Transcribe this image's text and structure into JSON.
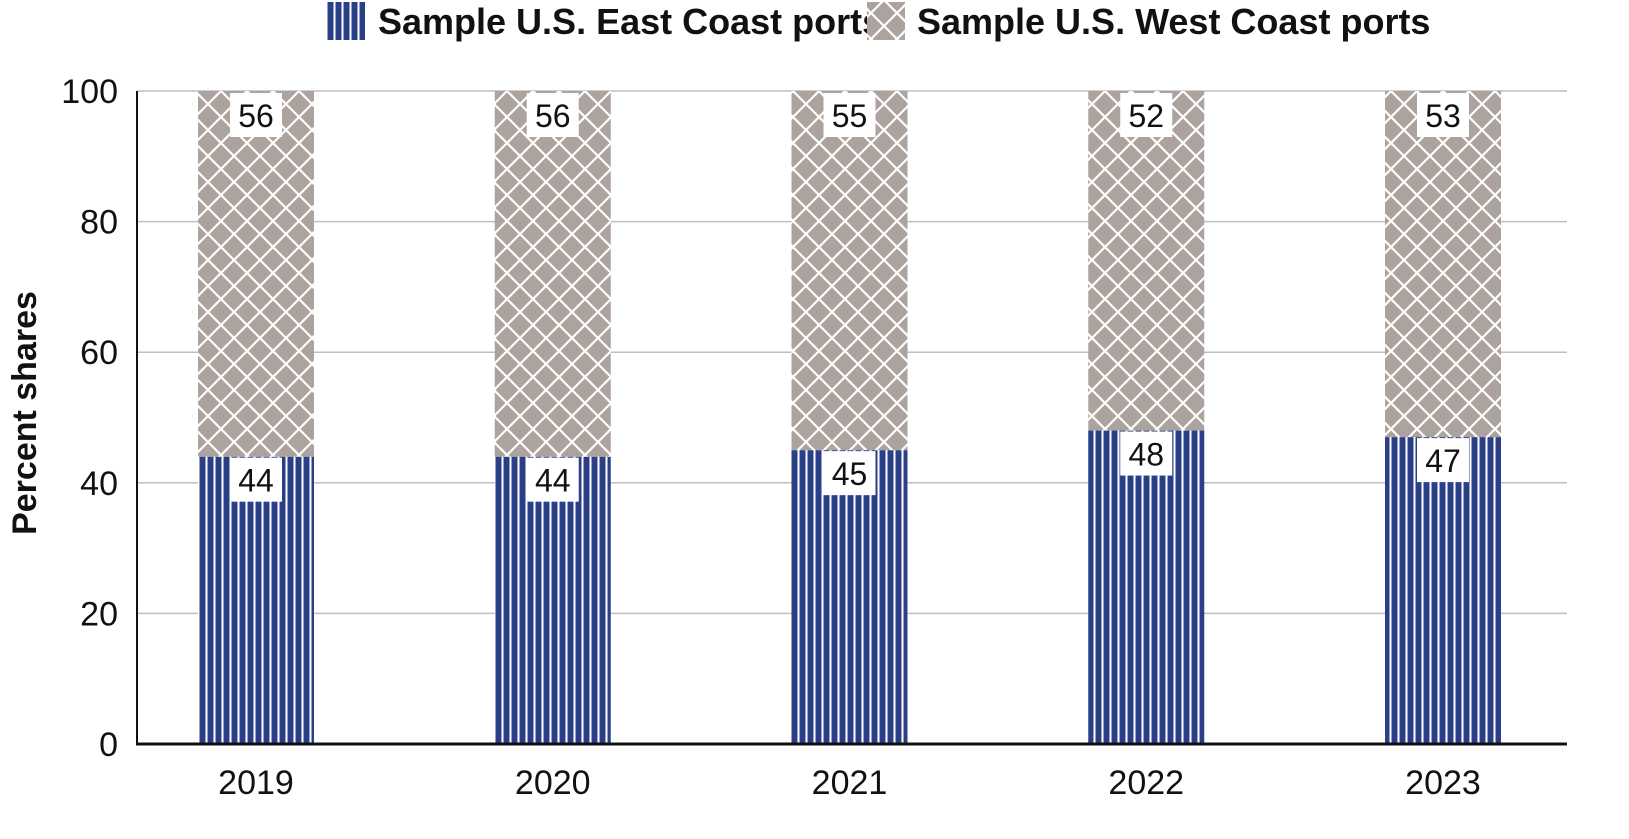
{
  "chart_data": {
    "type": "bar",
    "stacked": true,
    "categories": [
      "2019",
      "2020",
      "2021",
      "2022",
      "2023"
    ],
    "series": [
      {
        "name": "Sample U.S. East Coast ports",
        "values": [
          44,
          44,
          45,
          48,
          47
        ],
        "value_labels": [
          "44",
          "44",
          "45",
          "48",
          "47"
        ],
        "color": "#2b3f86",
        "pattern": "vertical-stripes"
      },
      {
        "name": "Sample U.S. West Coast ports",
        "values": [
          56,
          56,
          55,
          52,
          53
        ],
        "value_labels": [
          "56",
          "56",
          "55",
          "52",
          "53"
        ],
        "color": "#ada39e",
        "pattern": "crosshatch"
      }
    ],
    "ylabel": "Percent shares",
    "xlabel": "",
    "ylim": [
      0,
      100
    ],
    "yticks": [
      "0",
      "20",
      "40",
      "60",
      "80",
      "100"
    ],
    "grid": true,
    "legend_position": "top"
  }
}
